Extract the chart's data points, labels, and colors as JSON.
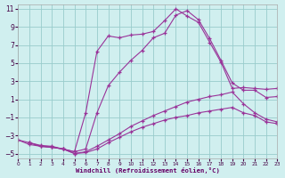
{
  "xlabel": "Windchill (Refroidissement éolien,°C)",
  "bg_color": "#d0efef",
  "line_color": "#993399",
  "grid_color": "#99cccc",
  "xlim": [
    0,
    23
  ],
  "ylim": [
    -5.5,
    11.5
  ],
  "xticks": [
    0,
    1,
    2,
    3,
    4,
    5,
    6,
    7,
    8,
    9,
    10,
    11,
    12,
    13,
    14,
    15,
    16,
    17,
    18,
    19,
    20,
    21,
    22,
    23
  ],
  "yticks": [
    -5,
    -3,
    -1,
    1,
    3,
    5,
    7,
    9,
    11
  ],
  "curves": [
    {
      "x": [
        1,
        2,
        3,
        4,
        5,
        6,
        7,
        8,
        9,
        10,
        11,
        12,
        13,
        14,
        15,
        16,
        17,
        18,
        19,
        20,
        21,
        22,
        23
      ],
      "y": [
        -3.8,
        -4.2,
        -4.3,
        -4.5,
        -4.8,
        -0.5,
        6.3,
        8.0,
        7.8,
        8.1,
        8.2,
        8.5,
        9.7,
        11.0,
        10.2,
        9.5,
        7.3,
        5.1,
        2.2,
        2.3,
        2.2,
        2.1,
        2.2
      ]
    },
    {
      "x": [
        1,
        2,
        3,
        4,
        5,
        6,
        7,
        8,
        9,
        10,
        11,
        12,
        13,
        14,
        15,
        16,
        17,
        18,
        19,
        20,
        21,
        22,
        23
      ],
      "y": [
        -3.8,
        -4.2,
        -4.3,
        -4.5,
        -4.8,
        -4.5,
        -0.5,
        2.5,
        4.0,
        5.3,
        6.4,
        7.8,
        8.3,
        10.3,
        10.8,
        9.8,
        7.7,
        5.3,
        2.8,
        2.0,
        2.0,
        1.2,
        1.3
      ]
    },
    {
      "x": [
        0,
        1,
        2,
        3,
        4,
        5,
        6,
        7,
        8,
        9,
        10,
        11,
        12,
        13,
        14,
        15,
        16,
        17,
        18,
        19,
        20,
        21,
        22,
        23
      ],
      "y": [
        -3.5,
        -3.8,
        -4.1,
        -4.2,
        -4.5,
        -5.0,
        -4.8,
        -4.2,
        -3.5,
        -2.8,
        -2.0,
        -1.4,
        -0.8,
        -0.3,
        0.2,
        0.7,
        1.0,
        1.3,
        1.5,
        1.8,
        0.5,
        -0.5,
        -1.2,
        -1.5
      ]
    },
    {
      "x": [
        0,
        1,
        2,
        3,
        4,
        5,
        6,
        7,
        8,
        9,
        10,
        11,
        12,
        13,
        14,
        15,
        16,
        17,
        18,
        19,
        20,
        21,
        22,
        23
      ],
      "y": [
        -3.5,
        -4.0,
        -4.2,
        -4.3,
        -4.5,
        -5.0,
        -4.9,
        -4.5,
        -3.8,
        -3.2,
        -2.6,
        -2.1,
        -1.7,
        -1.3,
        -1.0,
        -0.8,
        -0.5,
        -0.3,
        -0.1,
        0.1,
        -0.5,
        -0.8,
        -1.5,
        -1.7
      ]
    }
  ]
}
